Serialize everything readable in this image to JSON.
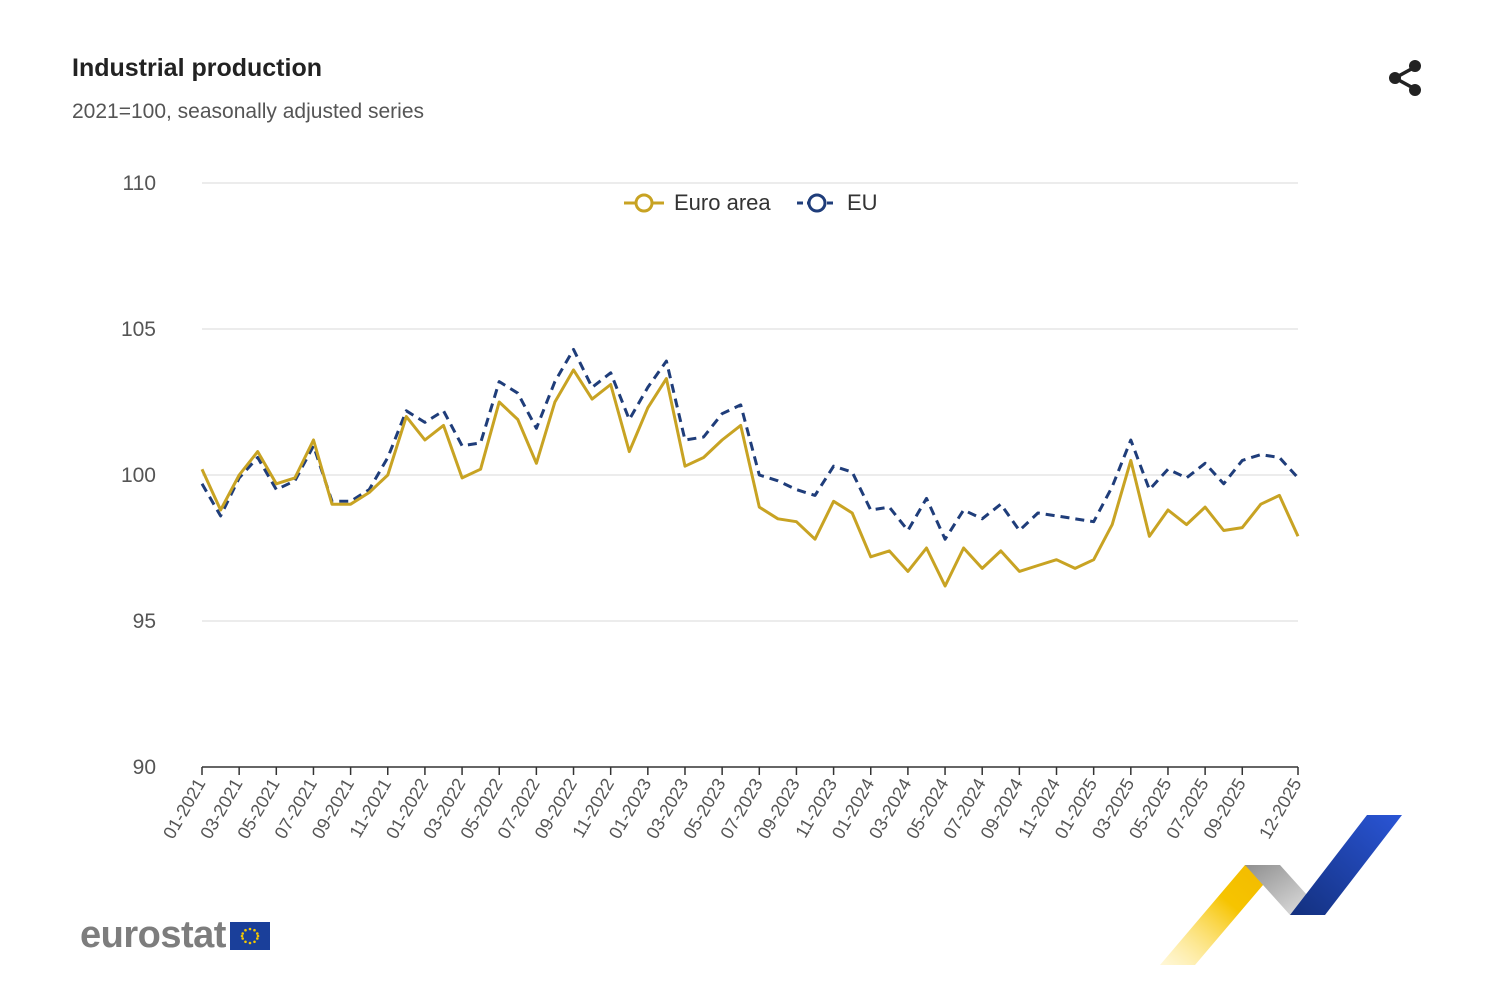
{
  "header": {
    "title": "Industrial production",
    "subtitle": "2021=100, seasonally adjusted series"
  },
  "icons": {
    "share": "share-icon",
    "logo_flag": "eu-flag-icon"
  },
  "logo": {
    "text": "eurostat"
  },
  "colors": {
    "euro_area": "#c8a323",
    "eu": "#1f3d7a",
    "grid": "#e6e6e6",
    "axis_text": "#555555"
  },
  "chart_data": {
    "type": "line",
    "title": "Industrial production",
    "subtitle": "2021=100, seasonally adjusted series",
    "xlabel": "",
    "ylabel": "",
    "ylim": [
      90,
      110
    ],
    "yticks": [
      90,
      95,
      100,
      105,
      110
    ],
    "grid": true,
    "legend_position": "top",
    "x": [
      "01-2021",
      "02-2021",
      "03-2021",
      "04-2021",
      "05-2021",
      "06-2021",
      "07-2021",
      "08-2021",
      "09-2021",
      "10-2021",
      "11-2021",
      "12-2021",
      "01-2022",
      "02-2022",
      "03-2022",
      "04-2022",
      "05-2022",
      "06-2022",
      "07-2022",
      "08-2022",
      "09-2022",
      "10-2022",
      "11-2022",
      "12-2022",
      "01-2023",
      "02-2023",
      "03-2023",
      "04-2023",
      "05-2023",
      "06-2023",
      "07-2023",
      "08-2023",
      "09-2023",
      "10-2023",
      "11-2023",
      "12-2023",
      "01-2024",
      "02-2024",
      "03-2024",
      "04-2024",
      "05-2024",
      "06-2024",
      "07-2024",
      "08-2024",
      "09-2024",
      "10-2024",
      "11-2024",
      "12-2024",
      "01-2025",
      "02-2025",
      "03-2025",
      "04-2025",
      "05-2025",
      "06-2025",
      "07-2025",
      "08-2025",
      "09-2025",
      "10-2025",
      "11-2025",
      "12-2025"
    ],
    "xtick_labels": [
      "01-2021",
      "03-2021",
      "05-2021",
      "07-2021",
      "09-2021",
      "11-2021",
      "01-2022",
      "03-2022",
      "05-2022",
      "07-2022",
      "09-2022",
      "11-2022",
      "01-2023",
      "03-2023",
      "05-2023",
      "07-2023",
      "09-2023",
      "11-2023",
      "01-2024",
      "03-2024",
      "05-2024",
      "07-2024",
      "09-2024",
      "11-2024",
      "01-2025",
      "03-2025",
      "05-2025",
      "07-2025",
      "09-2025",
      "12-2025"
    ],
    "series": [
      {
        "name": "Euro area",
        "style": "solid",
        "color": "#c8a323",
        "values": [
          100.2,
          98.8,
          100.0,
          100.8,
          99.7,
          99.9,
          101.2,
          99.0,
          99.0,
          99.4,
          100.0,
          102.0,
          101.2,
          101.7,
          99.9,
          100.2,
          102.5,
          101.9,
          100.4,
          102.5,
          103.6,
          102.6,
          103.1,
          100.8,
          102.3,
          103.3,
          100.3,
          100.6,
          101.2,
          101.7,
          98.9,
          98.5,
          98.4,
          97.8,
          99.1,
          98.7,
          97.2,
          97.4,
          96.7,
          97.5,
          96.2,
          97.5,
          96.8,
          97.4,
          96.7,
          96.9,
          97.1,
          96.8,
          97.1,
          98.3,
          100.5,
          97.9,
          98.8,
          98.3,
          98.9,
          98.1,
          98.2,
          99.0,
          99.3,
          97.9
        ]
      },
      {
        "name": "EU",
        "style": "dashed",
        "color": "#1f3d7a",
        "values": [
          99.7,
          98.6,
          99.9,
          100.6,
          99.5,
          99.8,
          101.0,
          99.1,
          99.1,
          99.5,
          100.6,
          102.2,
          101.8,
          102.2,
          101.0,
          101.1,
          103.2,
          102.8,
          101.6,
          103.2,
          104.3,
          103.0,
          103.5,
          101.9,
          103.0,
          103.9,
          101.2,
          101.3,
          102.1,
          102.4,
          100.0,
          99.8,
          99.5,
          99.3,
          100.3,
          100.1,
          98.8,
          98.9,
          98.1,
          99.2,
          97.8,
          98.8,
          98.5,
          99.0,
          98.1,
          98.7,
          98.6,
          98.5,
          98.4,
          99.6,
          101.2,
          99.5,
          100.2,
          99.9,
          100.4,
          99.7,
          100.5,
          100.7,
          100.6,
          99.9
        ]
      }
    ]
  }
}
